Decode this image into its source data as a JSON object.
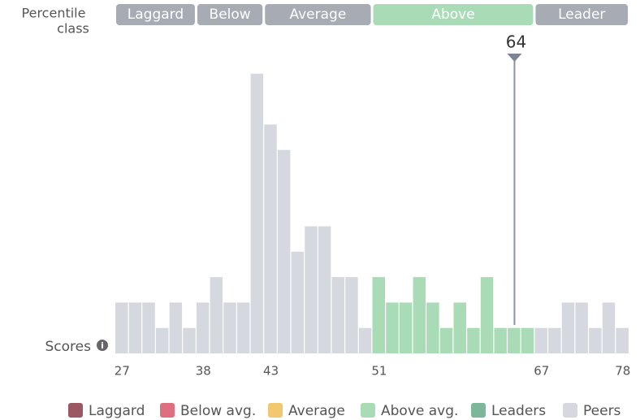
{
  "chart_data": {
    "type": "bar",
    "class_title": [
      "Percentile",
      "class"
    ],
    "classes": [
      {
        "name": "Laggard",
        "color": "#a7abb4"
      },
      {
        "name": "Below",
        "color": "#a7abb4"
      },
      {
        "name": "Average",
        "color": "#a7abb4"
      },
      {
        "name": "Above",
        "color": "#a9dcb6"
      },
      {
        "name": "Leader",
        "color": "#a7abb4"
      }
    ],
    "marker": 64,
    "x_label": "Scores",
    "categories": [
      "27",
      null,
      null,
      null,
      null,
      null,
      "38",
      null,
      null,
      null,
      null,
      "43",
      null,
      null,
      null,
      null,
      null,
      null,
      null,
      "51",
      null,
      null,
      null,
      null,
      null,
      null,
      null,
      null,
      null,
      null,
      null,
      "67",
      null,
      null,
      null,
      null,
      null,
      "78"
    ],
    "values": [
      2,
      2,
      2,
      1,
      2,
      1,
      2,
      3,
      2,
      2,
      11,
      9,
      8,
      4,
      5,
      5,
      3,
      3,
      1,
      3,
      2,
      2,
      3,
      2,
      1,
      2,
      1,
      3,
      1,
      1,
      1,
      1,
      1,
      2,
      2,
      1,
      2,
      1
    ],
    "colors": [
      "#d5d8de",
      "#d5d8de",
      "#d5d8de",
      "#d5d8de",
      "#d5d8de",
      "#d5d8de",
      "#d5d8de",
      "#d5d8de",
      "#d5d8de",
      "#d5d8de",
      "#d5d8de",
      "#d5d8de",
      "#d5d8de",
      "#d5d8de",
      "#d5d8de",
      "#d5d8de",
      "#d5d8de",
      "#d5d8de",
      "#d5d8de",
      "#a9dcb6",
      "#a9dcb6",
      "#a9dcb6",
      "#a9dcb6",
      "#a9dcb6",
      "#a9dcb6",
      "#a9dcb6",
      "#a9dcb6",
      "#a9dcb6",
      "#a9dcb6",
      "#a9dcb6",
      "#a9dcb6",
      "#d5d8de",
      "#d5d8de",
      "#d5d8de",
      "#d5d8de",
      "#d5d8de",
      "#d5d8de",
      "#d5d8de"
    ],
    "legend": [
      {
        "name": "Laggard",
        "color": "#9b5862"
      },
      {
        "name": "Below avg.",
        "color": "#de6f7f"
      },
      {
        "name": "Average",
        "color": "#f1c76f"
      },
      {
        "name": "Above avg.",
        "color": "#a9dcb6"
      },
      {
        "name": "Leaders",
        "color": "#7db79b"
      },
      {
        "name": "Peers",
        "color": "#d5d8de"
      }
    ]
  }
}
